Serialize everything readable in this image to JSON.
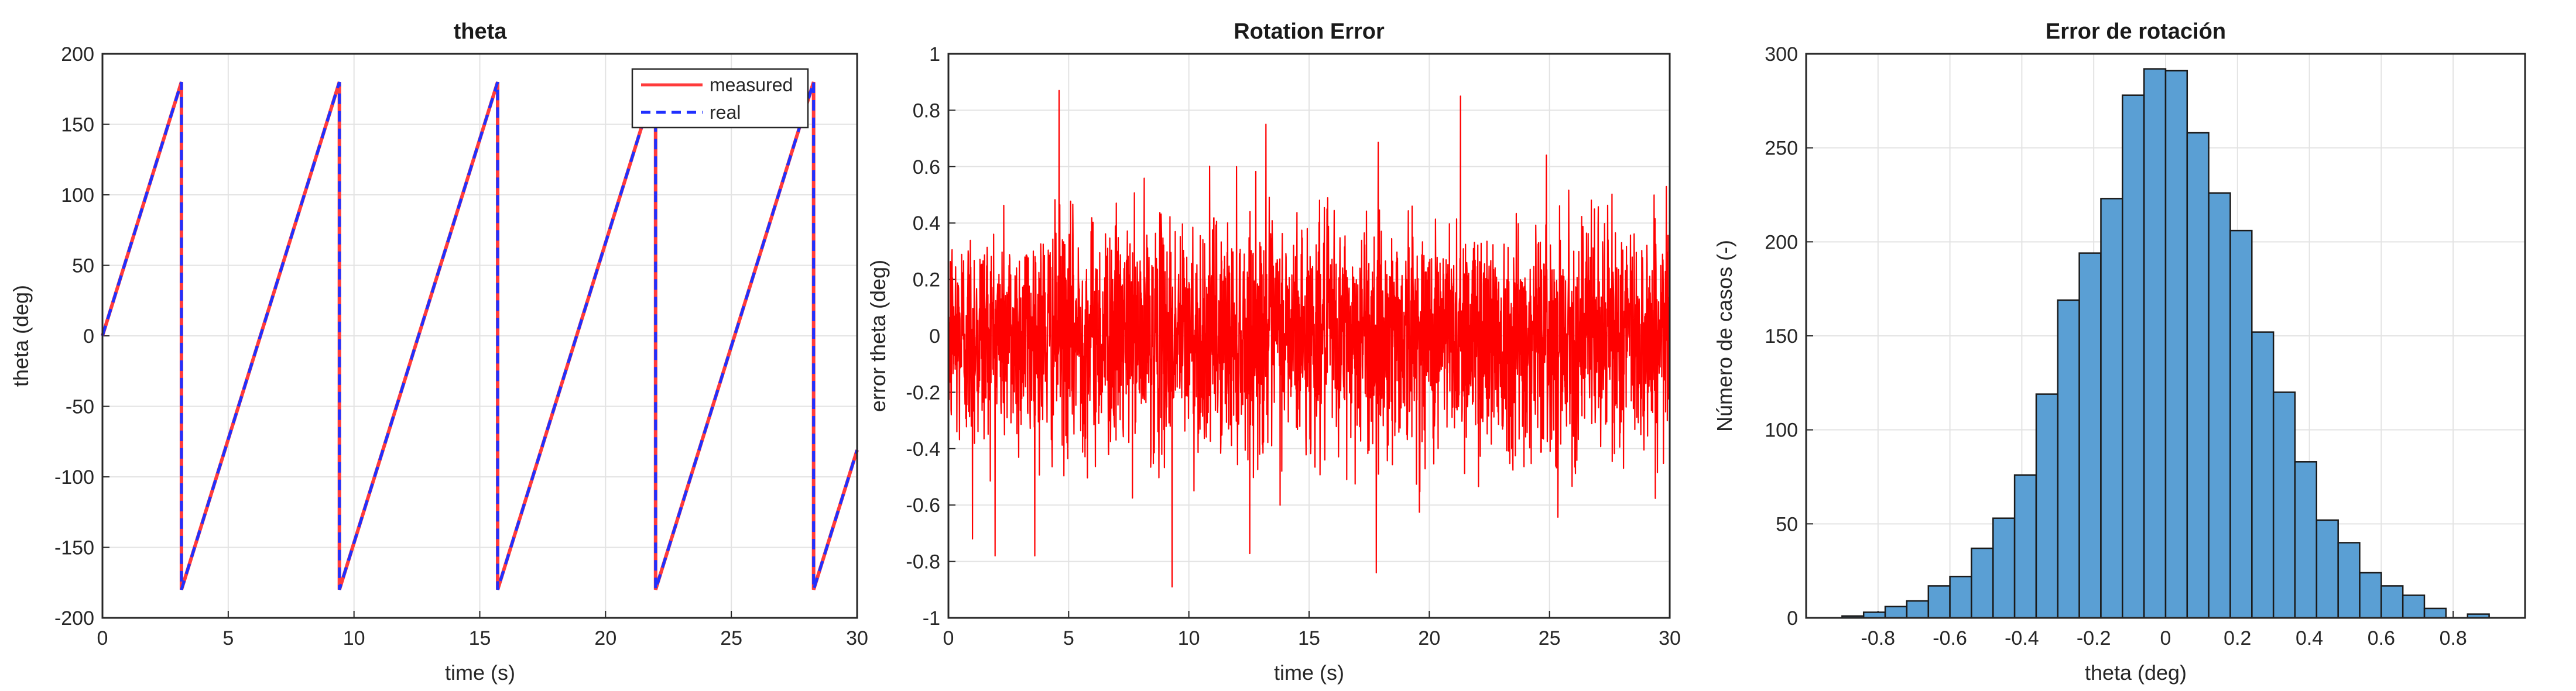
{
  "chart_data": [
    {
      "type": "line",
      "title": "theta",
      "xlabel": "time (s)",
      "ylabel": "theta (deg)",
      "xlim": [
        0,
        30
      ],
      "ylim": [
        -200,
        200
      ],
      "xticks": [
        "0",
        "5",
        "10",
        "15",
        "20",
        "25",
        "30"
      ],
      "yticks": [
        "-200",
        "-150",
        "-100",
        "-50",
        "0",
        "50",
        "100",
        "150",
        "200"
      ],
      "grid": true,
      "legend_position": "top-right",
      "series": [
        {
          "name": "measured",
          "color": "#ff3b3b",
          "style": "solid",
          "x": [
            0,
            3.14,
            3.14,
            9.42,
            9.42,
            15.71,
            15.71,
            21.99,
            21.99,
            28.27,
            28.27,
            30
          ],
          "y": [
            0,
            180,
            -180,
            180,
            -180,
            180,
            -180,
            180,
            -180,
            180,
            -180,
            -81
          ]
        },
        {
          "name": "real",
          "color": "#2030ff",
          "style": "dashed",
          "x": [
            0,
            3.14,
            3.14,
            9.42,
            9.42,
            15.71,
            15.71,
            21.99,
            21.99,
            28.27,
            28.27,
            30
          ],
          "y": [
            0,
            180,
            -180,
            180,
            -180,
            180,
            -180,
            180,
            -180,
            180,
            -180,
            -81
          ]
        }
      ]
    },
    {
      "type": "line",
      "title": "Rotation Error",
      "xlabel": "time (s)",
      "ylabel": "error theta (deg)",
      "xlim": [
        0,
        30
      ],
      "ylim": [
        -1,
        1
      ],
      "xticks": [
        "0",
        "5",
        "10",
        "15",
        "20",
        "25",
        "30"
      ],
      "yticks": [
        "-1",
        "-0.8",
        "-0.6",
        "-0.4",
        "-0.2",
        "0",
        "0.2",
        "0.4",
        "0.6",
        "0.8",
        "1"
      ],
      "grid": true,
      "series": [
        {
          "color": "#ff0000",
          "noise": {
            "n_points": 3000,
            "std": 0.2,
            "mean": 0
          },
          "peaks": [
            {
              "x": 4.6,
              "y": 0.87
            },
            {
              "x": 9.3,
              "y": -0.89
            },
            {
              "x": 21.3,
              "y": 0.85
            },
            {
              "x": 17.8,
              "y": -0.84
            },
            {
              "x": 1.0,
              "y": -0.72
            },
            {
              "x": 13.2,
              "y": 0.75
            }
          ]
        }
      ]
    },
    {
      "type": "bar",
      "title": "Error de rotación",
      "xlabel": "theta (deg)",
      "ylabel": "Número de casos (-)",
      "xlim": [
        -1.0,
        1.0
      ],
      "ylim": [
        0,
        300
      ],
      "xticks": [
        "-0.8",
        "-0.6",
        "-0.4",
        "-0.2",
        "0",
        "0.2",
        "0.4",
        "0.6",
        "0.8"
      ],
      "yticks": [
        "0",
        "50",
        "100",
        "150",
        "200",
        "250",
        "300"
      ],
      "grid": true,
      "bar_color": "#5a9fd4",
      "bin_edges": [
        -0.9,
        -0.84,
        -0.78,
        -0.72,
        -0.66,
        -0.6,
        -0.54,
        -0.48,
        -0.42,
        -0.36,
        -0.3,
        -0.24,
        -0.18,
        -0.12,
        -0.06,
        0.0,
        0.06,
        0.12,
        0.18,
        0.24,
        0.3,
        0.36,
        0.42,
        0.48,
        0.54,
        0.6,
        0.66,
        0.72,
        0.78,
        0.84,
        0.9
      ],
      "values": [
        1,
        3,
        6,
        9,
        17,
        22,
        37,
        53,
        76,
        119,
        169,
        194,
        223,
        278,
        292,
        291,
        258,
        226,
        206,
        152,
        120,
        83,
        52,
        40,
        24,
        17,
        12,
        5,
        0,
        2
      ]
    }
  ]
}
